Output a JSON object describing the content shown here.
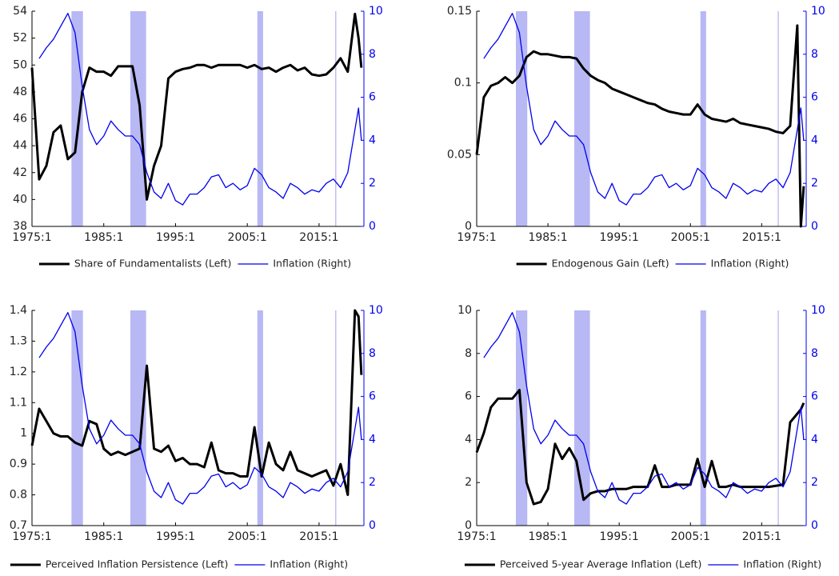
{
  "chart_data": [
    {
      "type": "line",
      "x": [
        1975,
        1976,
        1977,
        1978,
        1979,
        1980,
        1981,
        1982,
        1983,
        1984,
        1985,
        1986,
        1987,
        1988,
        1989,
        1990,
        1991,
        1992,
        1993,
        1994,
        1995,
        1996,
        1997,
        1998,
        1999,
        2000,
        2001,
        2002,
        2003,
        2004,
        2005,
        2006,
        2007,
        2008,
        2009,
        2010,
        2011,
        2012,
        2013,
        2014,
        2015,
        2016,
        2017,
        2018,
        2019,
        2020,
        2020.5,
        2020.9
      ],
      "xlim": [
        1975,
        2021.25
      ],
      "xticks": [
        {
          "value": 1975,
          "label": "1975:1"
        },
        {
          "value": 1985,
          "label": "1985:1"
        },
        {
          "value": 1995,
          "label": "1995:1"
        },
        {
          "value": 2005,
          "label": "2005:1"
        },
        {
          "value": 2015,
          "label": "2015:1"
        }
      ],
      "ylim": [
        38,
        54
      ],
      "yticks": [
        38,
        40,
        42,
        44,
        46,
        48,
        50,
        52,
        54
      ],
      "y2lim": [
        0,
        10
      ],
      "y2ticks": [
        0,
        2,
        4,
        6,
        8,
        10
      ],
      "shaded_periods": [
        [
          1980.5,
          1982.1
        ],
        [
          1988.7,
          1990.9
        ],
        [
          2006.4,
          2007.2
        ],
        [
          2017.25,
          2017.4
        ]
      ],
      "shade_color": "#b8b8f5",
      "series": [
        {
          "name": "Share of Fundamentalists (Left)",
          "color": "#000000",
          "values": [
            49.8,
            41.5,
            42.5,
            45,
            45.5,
            43,
            43.5,
            48,
            49.8,
            49.5,
            49.5,
            49.2,
            49.9,
            49.9,
            49.9,
            47,
            40,
            42.5,
            44,
            49,
            49.5,
            49.7,
            49.8,
            50,
            50,
            49.8,
            50,
            50,
            50,
            50,
            49.8,
            50,
            49.7,
            49.8,
            49.5,
            49.8,
            50,
            49.6,
            49.8,
            49.3,
            49.2,
            49.3,
            49.8,
            50.5,
            49.5,
            53.8,
            52,
            49.8
          ]
        },
        {
          "name": "Inflation (Right)",
          "color": "#0000ee",
          "axis": "y2",
          "values": [
            null,
            7.8,
            8.3,
            8.7,
            9.3,
            9.9,
            9.0,
            6.5,
            4.5,
            3.8,
            4.2,
            4.9,
            4.5,
            4.2,
            4.2,
            3.8,
            2.5,
            1.6,
            1.3,
            2.0,
            1.2,
            1.0,
            1.5,
            1.5,
            1.8,
            2.3,
            2.4,
            1.8,
            2.0,
            1.7,
            1.9,
            2.7,
            2.4,
            1.8,
            1.6,
            1.3,
            2.0,
            1.8,
            1.5,
            1.7,
            1.6,
            2.0,
            2.2,
            1.8,
            2.5,
            4.5,
            5.5,
            4.0
          ]
        }
      ]
    },
    {
      "type": "line",
      "x": [
        1975,
        1976,
        1977,
        1978,
        1979,
        1980,
        1981,
        1982,
        1983,
        1984,
        1985,
        1986,
        1987,
        1988,
        1989,
        1990,
        1991,
        1992,
        1993,
        1994,
        1995,
        1996,
        1997,
        1998,
        1999,
        2000,
        2001,
        2002,
        2003,
        2004,
        2005,
        2006,
        2007,
        2008,
        2009,
        2010,
        2011,
        2012,
        2013,
        2014,
        2015,
        2016,
        2017,
        2018,
        2019,
        2020,
        2020.5,
        2020.9
      ],
      "xlim": [
        1975,
        2021.25
      ],
      "xticks": [
        {
          "value": 1975,
          "label": "1975:1"
        },
        {
          "value": 1985,
          "label": "1985:1"
        },
        {
          "value": 1995,
          "label": "1995:1"
        },
        {
          "value": 2005,
          "label": "2005:1"
        },
        {
          "value": 2015,
          "label": "2015:1"
        }
      ],
      "ylim": [
        0,
        0.15
      ],
      "yticks": [
        0,
        0.05,
        0.1,
        0.15
      ],
      "y2lim": [
        0,
        10
      ],
      "y2ticks": [
        0,
        2,
        4,
        6,
        8,
        10
      ],
      "shaded_periods": [
        [
          1980.5,
          1982.1
        ],
        [
          1988.7,
          1990.9
        ],
        [
          2006.4,
          2007.2
        ],
        [
          2017.25,
          2017.4
        ]
      ],
      "shade_color": "#b8b8f5",
      "series": [
        {
          "name": "Endogenous Gain (Left)",
          "color": "#000000",
          "values": [
            0.05,
            0.09,
            0.098,
            0.1,
            0.104,
            0.1,
            0.105,
            0.118,
            0.122,
            0.12,
            0.12,
            0.119,
            0.118,
            0.118,
            0.117,
            0.11,
            0.105,
            0.102,
            0.1,
            0.096,
            0.094,
            0.092,
            0.09,
            0.088,
            0.086,
            0.085,
            0.082,
            0.08,
            0.079,
            0.078,
            0.078,
            0.085,
            0.078,
            0.075,
            0.074,
            0.073,
            0.075,
            0.072,
            0.071,
            0.07,
            0.069,
            0.068,
            0.066,
            0.065,
            0.07,
            0.14,
            0.0,
            0.028
          ]
        },
        {
          "name": "Inflation (Right)",
          "color": "#0000ee",
          "axis": "y2",
          "values": [
            null,
            7.8,
            8.3,
            8.7,
            9.3,
            9.9,
            9.0,
            6.5,
            4.5,
            3.8,
            4.2,
            4.9,
            4.5,
            4.2,
            4.2,
            3.8,
            2.5,
            1.6,
            1.3,
            2.0,
            1.2,
            1.0,
            1.5,
            1.5,
            1.8,
            2.3,
            2.4,
            1.8,
            2.0,
            1.7,
            1.9,
            2.7,
            2.4,
            1.8,
            1.6,
            1.3,
            2.0,
            1.8,
            1.5,
            1.7,
            1.6,
            2.0,
            2.2,
            1.8,
            2.5,
            4.5,
            5.5,
            4.0
          ]
        }
      ]
    },
    {
      "type": "line",
      "x": [
        1975,
        1976,
        1977,
        1978,
        1979,
        1980,
        1981,
        1982,
        1983,
        1984,
        1985,
        1986,
        1987,
        1988,
        1989,
        1990,
        1991,
        1992,
        1993,
        1994,
        1995,
        1996,
        1997,
        1998,
        1999,
        2000,
        2001,
        2002,
        2003,
        2004,
        2005,
        2006,
        2007,
        2008,
        2009,
        2010,
        2011,
        2012,
        2013,
        2014,
        2015,
        2016,
        2017,
        2018,
        2019,
        2020,
        2020.5,
        2020.9
      ],
      "xlim": [
        1975,
        2021.25
      ],
      "xticks": [
        {
          "value": 1975,
          "label": "1975:1"
        },
        {
          "value": 1985,
          "label": "1985:1"
        },
        {
          "value": 1995,
          "label": "1995:1"
        },
        {
          "value": 2005,
          "label": "2005:1"
        },
        {
          "value": 2015,
          "label": "2015:1"
        }
      ],
      "ylim": [
        0.7,
        1.4
      ],
      "yticks": [
        0.7,
        0.8,
        0.9,
        1,
        1.1,
        1.2,
        1.3,
        1.4
      ],
      "y2lim": [
        0,
        10
      ],
      "y2ticks": [
        0,
        2,
        4,
        6,
        8,
        10
      ],
      "shaded_periods": [
        [
          1980.5,
          1982.1
        ],
        [
          1988.7,
          1990.9
        ],
        [
          2006.4,
          2007.2
        ],
        [
          2017.25,
          2017.4
        ]
      ],
      "shade_color": "#b8b8f5",
      "series": [
        {
          "name": "Perceived Inflation Persistence (Left)",
          "color": "#000000",
          "values": [
            0.96,
            1.08,
            1.04,
            1.0,
            0.99,
            0.99,
            0.97,
            0.96,
            1.04,
            1.03,
            0.95,
            0.93,
            0.94,
            0.93,
            0.94,
            0.95,
            1.22,
            0.95,
            0.94,
            0.96,
            0.91,
            0.92,
            0.9,
            0.9,
            0.89,
            0.97,
            0.88,
            0.87,
            0.87,
            0.86,
            0.86,
            1.02,
            0.86,
            0.97,
            0.9,
            0.88,
            0.94,
            0.88,
            0.87,
            0.86,
            0.87,
            0.88,
            0.83,
            0.9,
            0.8,
            1.4,
            1.38,
            1.19
          ]
        },
        {
          "name": "Inflation (Right)",
          "color": "#0000ee",
          "axis": "y2",
          "values": [
            null,
            7.8,
            8.3,
            8.7,
            9.3,
            9.9,
            9.0,
            6.5,
            4.5,
            3.8,
            4.2,
            4.9,
            4.5,
            4.2,
            4.2,
            3.8,
            2.5,
            1.6,
            1.3,
            2.0,
            1.2,
            1.0,
            1.5,
            1.5,
            1.8,
            2.3,
            2.4,
            1.8,
            2.0,
            1.7,
            1.9,
            2.7,
            2.4,
            1.8,
            1.6,
            1.3,
            2.0,
            1.8,
            1.5,
            1.7,
            1.6,
            2.0,
            2.2,
            1.8,
            2.5,
            4.5,
            5.5,
            4.0
          ]
        }
      ]
    },
    {
      "type": "line",
      "x": [
        1975,
        1976,
        1977,
        1978,
        1979,
        1980,
        1981,
        1982,
        1983,
        1984,
        1985,
        1986,
        1987,
        1988,
        1989,
        1990,
        1991,
        1992,
        1993,
        1994,
        1995,
        1996,
        1997,
        1998,
        1999,
        2000,
        2001,
        2002,
        2003,
        2004,
        2005,
        2006,
        2007,
        2008,
        2009,
        2010,
        2011,
        2012,
        2013,
        2014,
        2015,
        2016,
        2017,
        2018,
        2019,
        2020,
        2020.5,
        2020.9
      ],
      "xlim": [
        1975,
        2021.25
      ],
      "xticks": [
        {
          "value": 1975,
          "label": "1975:1"
        },
        {
          "value": 1985,
          "label": "1985:1"
        },
        {
          "value": 1995,
          "label": "1995:1"
        },
        {
          "value": 2005,
          "label": "2005:1"
        },
        {
          "value": 2015,
          "label": "2015:1"
        }
      ],
      "ylim": [
        0,
        10
      ],
      "yticks": [
        0,
        2,
        4,
        6,
        8,
        10
      ],
      "y2lim": [
        0,
        10
      ],
      "y2ticks": [
        0,
        2,
        4,
        6,
        8,
        10
      ],
      "shaded_periods": [
        [
          1980.5,
          1982.1
        ],
        [
          1988.7,
          1990.9
        ],
        [
          2006.4,
          2007.2
        ],
        [
          2017.25,
          2017.4
        ]
      ],
      "shade_color": "#b8b8f5",
      "series": [
        {
          "name": "Perceived 5-year Average Inflation (Left)",
          "color": "#000000",
          "values": [
            3.4,
            4.3,
            5.5,
            5.9,
            5.9,
            5.9,
            6.3,
            2.0,
            1.0,
            1.1,
            1.7,
            3.8,
            3.1,
            3.6,
            3.0,
            1.2,
            1.5,
            1.6,
            1.6,
            1.7,
            1.7,
            1.7,
            1.8,
            1.8,
            1.8,
            2.8,
            1.8,
            1.8,
            1.9,
            1.9,
            1.9,
            3.1,
            1.8,
            3.0,
            1.8,
            1.8,
            1.9,
            1.8,
            1.8,
            1.8,
            1.8,
            1.8,
            1.85,
            1.9,
            4.8,
            5.2,
            5.4,
            5.7
          ]
        },
        {
          "name": "Inflation (Right)",
          "color": "#0000ee",
          "axis": "y2",
          "values": [
            null,
            7.8,
            8.3,
            8.7,
            9.3,
            9.9,
            9.0,
            6.5,
            4.5,
            3.8,
            4.2,
            4.9,
            4.5,
            4.2,
            4.2,
            3.8,
            2.5,
            1.6,
            1.3,
            2.0,
            1.2,
            1.0,
            1.5,
            1.5,
            1.8,
            2.3,
            2.4,
            1.8,
            2.0,
            1.7,
            1.9,
            2.7,
            2.4,
            1.8,
            1.6,
            1.3,
            2.0,
            1.8,
            1.5,
            1.7,
            1.6,
            2.0,
            2.2,
            1.8,
            2.5,
            4.5,
            5.5,
            4.0
          ]
        }
      ]
    }
  ]
}
